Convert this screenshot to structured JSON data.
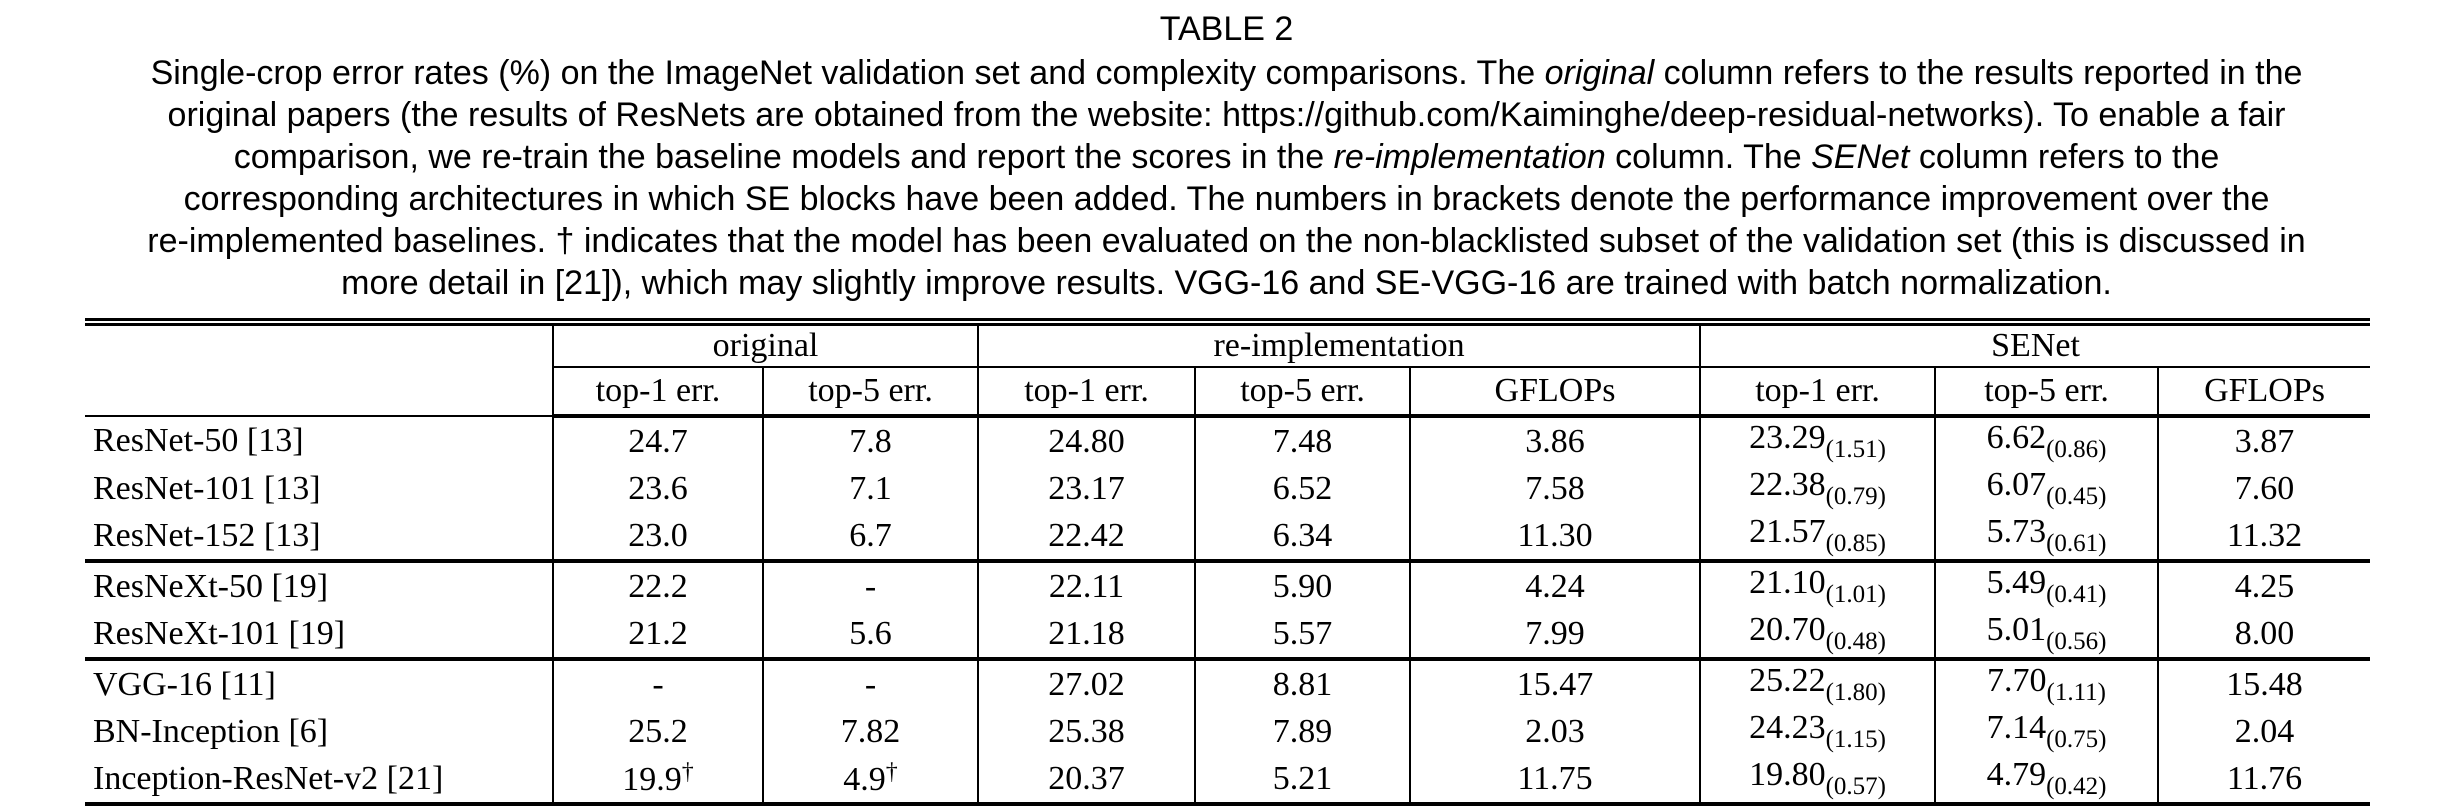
{
  "page": {
    "title": "TABLE 2",
    "caption_lines": [
      [
        {
          "t": "Single-crop error rates (%) on the ImageNet validation set and complexity comparisons. The "
        },
        {
          "t": "original",
          "i": true
        },
        {
          "t": " column refers to the results reported in the"
        }
      ],
      [
        {
          "t": "original papers (the results of ResNets are obtained from the website: https://github.com/Kaiminghe/deep-residual-networks). To enable a fair"
        }
      ],
      [
        {
          "t": "comparison, we re-train the baseline models and report the scores in the "
        },
        {
          "t": "re-implementation",
          "i": true
        },
        {
          "t": " column. The "
        },
        {
          "t": "SENet",
          "i": true
        },
        {
          "t": " column refers to the"
        }
      ],
      [
        {
          "t": "corresponding architectures in which SE blocks have been added. The numbers in brackets denote the performance improvement over the"
        }
      ],
      [
        {
          "t": "re-implemented baselines. † indicates that the model has been evaluated on the non-blacklisted subset of the validation set (this is discussed in"
        }
      ],
      [
        {
          "t": "more detail in [21]), which may slightly improve results. VGG-16 and SE-VGG-16 are trained with batch normalization."
        }
      ]
    ]
  },
  "table": {
    "col_groups": [
      {
        "label": "original",
        "span": 2
      },
      {
        "label": "re-implementation",
        "span": 3
      },
      {
        "label": "SENet",
        "span": 3
      }
    ],
    "sub_headers": [
      "top-1 err.",
      "top-5 err.",
      "top-1 err.",
      "top-5 err.",
      "GFLOPs",
      "top-1 err.",
      "top-5 err.",
      "GFLOPs"
    ],
    "row_groups": [
      {
        "rows": [
          {
            "model": "ResNet-50 [13]",
            "cells": [
              {
                "v": "24.7"
              },
              {
                "v": "7.8"
              },
              {
                "v": "24.80"
              },
              {
                "v": "7.48"
              },
              {
                "v": "3.86"
              },
              {
                "v": "23.29",
                "sub": "(1.51)"
              },
              {
                "v": "6.62",
                "sub": "(0.86)"
              },
              {
                "v": "3.87"
              }
            ]
          },
          {
            "model": "ResNet-101 [13]",
            "cells": [
              {
                "v": "23.6"
              },
              {
                "v": "7.1"
              },
              {
                "v": "23.17"
              },
              {
                "v": "6.52"
              },
              {
                "v": "7.58"
              },
              {
                "v": "22.38",
                "sub": "(0.79)"
              },
              {
                "v": "6.07",
                "sub": "(0.45)"
              },
              {
                "v": "7.60"
              }
            ]
          },
          {
            "model": "ResNet-152 [13]",
            "cells": [
              {
                "v": "23.0"
              },
              {
                "v": "6.7"
              },
              {
                "v": "22.42"
              },
              {
                "v": "6.34"
              },
              {
                "v": "11.30"
              },
              {
                "v": "21.57",
                "sub": "(0.85)"
              },
              {
                "v": "5.73",
                "sub": "(0.61)"
              },
              {
                "v": "11.32"
              }
            ]
          }
        ]
      },
      {
        "rows": [
          {
            "model": "ResNeXt-50 [19]",
            "cells": [
              {
                "v": "22.2"
              },
              {
                "v": "-"
              },
              {
                "v": "22.11"
              },
              {
                "v": "5.90"
              },
              {
                "v": "4.24"
              },
              {
                "v": "21.10",
                "sub": "(1.01)"
              },
              {
                "v": "5.49",
                "sub": "(0.41)"
              },
              {
                "v": "4.25"
              }
            ]
          },
          {
            "model": "ResNeXt-101 [19]",
            "cells": [
              {
                "v": "21.2"
              },
              {
                "v": "5.6"
              },
              {
                "v": "21.18"
              },
              {
                "v": "5.57"
              },
              {
                "v": "7.99"
              },
              {
                "v": "20.70",
                "sub": "(0.48)"
              },
              {
                "v": "5.01",
                "sub": "(0.56)"
              },
              {
                "v": "8.00"
              }
            ]
          }
        ]
      },
      {
        "rows": [
          {
            "model": "VGG-16 [11]",
            "cells": [
              {
                "v": "-"
              },
              {
                "v": "-"
              },
              {
                "v": "27.02"
              },
              {
                "v": "8.81"
              },
              {
                "v": "15.47"
              },
              {
                "v": "25.22",
                "sub": "(1.80)"
              },
              {
                "v": "7.70",
                "sub": "(1.11)"
              },
              {
                "v": "15.48"
              }
            ]
          },
          {
            "model": "BN-Inception [6]",
            "cells": [
              {
                "v": "25.2"
              },
              {
                "v": "7.82"
              },
              {
                "v": "25.38"
              },
              {
                "v": "7.89"
              },
              {
                "v": "2.03"
              },
              {
                "v": "24.23",
                "sub": "(1.15)"
              },
              {
                "v": "7.14",
                "sub": "(0.75)"
              },
              {
                "v": "2.04"
              }
            ]
          },
          {
            "model": "Inception-ResNet-v2 [21]",
            "cells": [
              {
                "v": "19.9",
                "sup": "†"
              },
              {
                "v": "4.9",
                "sup": "†"
              },
              {
                "v": "20.37"
              },
              {
                "v": "5.21"
              },
              {
                "v": "11.75"
              },
              {
                "v": "19.80",
                "sub": "(0.57)"
              },
              {
                "v": "4.79",
                "sub": "(0.42)"
              },
              {
                "v": "11.76"
              }
            ]
          }
        ]
      }
    ]
  },
  "colors": {
    "text": "#000000",
    "background": "#ffffff",
    "rule": "#000000"
  }
}
